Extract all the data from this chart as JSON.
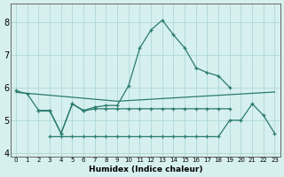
{
  "xlabel": "Humidex (Indice chaleur)",
  "color": "#2a7a6f",
  "bg_color": "#d6f0ef",
  "grid_color": "#aed8d4",
  "ylim": [
    3.9,
    8.55
  ],
  "xlim": [
    -0.5,
    23.5
  ],
  "yticks": [
    4,
    5,
    6,
    7,
    8
  ],
  "xticks": [
    0,
    1,
    2,
    3,
    4,
    5,
    6,
    7,
    8,
    9,
    10,
    11,
    12,
    13,
    14,
    15,
    16,
    17,
    18,
    19,
    20,
    21,
    22,
    23
  ],
  "line_peak_x": [
    0,
    1,
    2,
    3,
    4,
    5,
    6,
    7,
    8,
    9,
    10,
    11,
    12,
    13,
    14,
    15,
    16,
    17,
    18,
    19
  ],
  "line_peak_y": [
    5.9,
    5.8,
    5.3,
    5.3,
    4.6,
    5.5,
    5.3,
    5.4,
    5.45,
    5.45,
    6.05,
    7.2,
    7.75,
    8.05,
    7.6,
    7.2,
    6.6,
    6.45,
    6.35,
    6.0
  ],
  "line_trend_x": [
    0,
    1,
    2,
    3,
    4,
    5,
    6,
    7,
    8,
    9,
    10,
    11,
    12,
    13,
    14,
    15,
    16,
    17,
    18,
    19,
    20,
    21,
    22,
    23
  ],
  "line_trend_y": [
    5.85,
    5.82,
    5.79,
    5.76,
    5.73,
    5.7,
    5.67,
    5.64,
    5.61,
    5.58,
    5.6,
    5.62,
    5.64,
    5.66,
    5.68,
    5.7,
    5.72,
    5.74,
    5.76,
    5.78,
    5.8,
    5.82,
    5.84,
    5.86
  ],
  "line_mid_x": [
    2,
    3,
    4,
    5,
    6,
    7,
    8,
    9,
    10,
    11,
    12,
    13,
    14,
    15,
    16,
    17,
    18,
    19
  ],
  "line_mid_y": [
    5.28,
    5.28,
    4.6,
    5.5,
    5.28,
    5.35,
    5.35,
    5.35,
    5.35,
    5.35,
    5.35,
    5.35,
    5.35,
    5.35,
    5.35,
    5.35,
    5.35,
    5.35
  ],
  "line_bot_x": [
    3,
    4,
    5,
    6,
    7,
    8,
    9,
    10,
    11,
    12,
    13,
    14,
    15,
    16,
    17,
    18,
    19,
    20,
    21,
    22,
    23
  ],
  "line_bot_y": [
    4.5,
    4.5,
    4.5,
    4.5,
    4.5,
    4.5,
    4.5,
    4.5,
    4.5,
    4.5,
    4.5,
    4.5,
    4.5,
    4.5,
    4.5,
    4.5,
    5.0,
    5.0,
    5.5,
    5.15,
    4.6
  ]
}
